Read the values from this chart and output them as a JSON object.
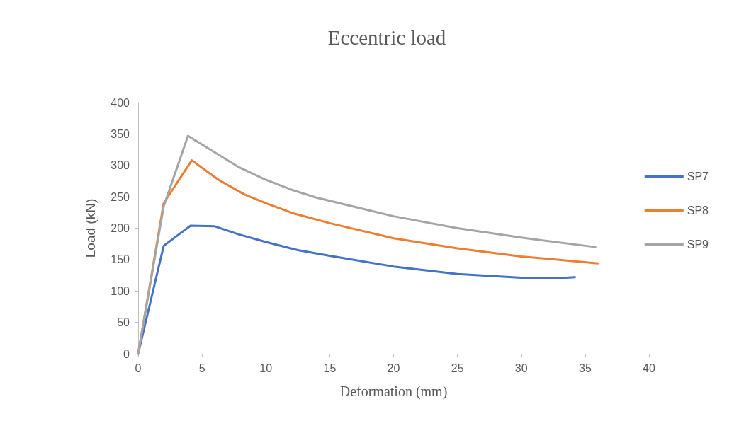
{
  "chart_data": {
    "type": "line",
    "title": "Eccentric load",
    "xlabel": "Deformation (mm)",
    "ylabel": "Load (kN)",
    "xlim": [
      0,
      40
    ],
    "xticks": [
      0,
      5,
      10,
      15,
      20,
      25,
      30,
      35,
      40
    ],
    "ylim": [
      0,
      400
    ],
    "yticks": [
      0,
      50,
      100,
      150,
      200,
      250,
      300,
      350,
      400
    ],
    "grid": false,
    "legend": "right",
    "marker": "none",
    "line_style": "solid",
    "series": [
      {
        "name": "SP7",
        "color": "#4472c4",
        "x": [
          0,
          2,
          4.1,
          6,
          7.9,
          10,
          12.5,
          15,
          20,
          25,
          30,
          32.5,
          34.2
        ],
        "values": [
          0,
          172,
          204,
          203,
          190,
          178,
          165,
          156,
          139,
          127,
          121,
          120,
          122
        ]
      },
      {
        "name": "SP8",
        "color": "#ed7d31",
        "x": [
          0,
          2,
          4.2,
          6.3,
          8.3,
          10.1,
          12.1,
          15,
          20,
          25,
          30,
          36
        ],
        "values": [
          0,
          240,
          308,
          277,
          254,
          239,
          224,
          208,
          184,
          168,
          155,
          144
        ]
      },
      {
        "name": "SP9",
        "color": "#a5a5a5",
        "x": [
          0,
          2,
          3.9,
          7.9,
          9.9,
          11.9,
          13.9,
          20,
          25,
          30,
          35.8
        ],
        "values": [
          0,
          235,
          347,
          297,
          278,
          262,
          249,
          219,
          200,
          185,
          170
        ]
      }
    ]
  }
}
